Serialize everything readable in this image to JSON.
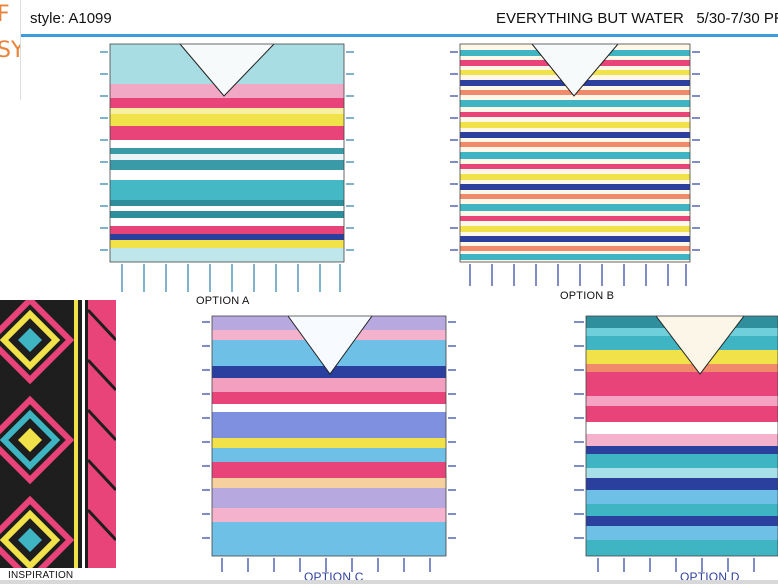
{
  "header": {
    "logo_top": "F",
    "logo_bottom": "SY",
    "style": "style: A1099",
    "brand": "EVERYTHING BUT WATER",
    "dates": "5/30-7/30 PR"
  },
  "options": [
    {
      "label": "OPTION A"
    },
    {
      "label": "OPTION B"
    },
    {
      "label": "OPTION C"
    },
    {
      "label": "OPTION D"
    }
  ],
  "inspiration": {
    "label": "INSPIRATION"
  },
  "colors": {
    "accent": "#3d9be0",
    "teal": "#3fb5c4",
    "pink": "#e8447a",
    "yellow": "#f2e24a",
    "navy": "#2b3f9e",
    "lavender": "#b8a8e0",
    "coral": "#f08a6a"
  }
}
